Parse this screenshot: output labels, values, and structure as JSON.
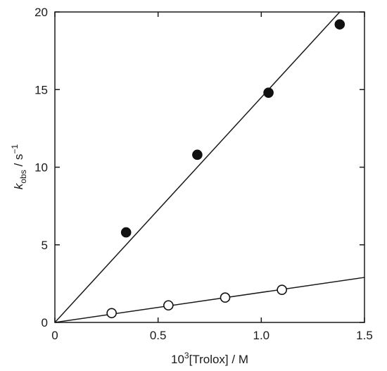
{
  "chart_data": {
    "type": "scatter",
    "xlabel": {
      "prefix": "10",
      "sup": "3",
      "suffix": "[Trolox] / M"
    },
    "ylabel": {
      "symbol": "k",
      "sub": "obs",
      "units": " / s",
      "sup": "−1"
    },
    "xlim": [
      0,
      1.5
    ],
    "ylim": [
      0,
      20
    ],
    "x_ticks": [
      0,
      0.5,
      1.0,
      1.5
    ],
    "x_tick_labels": [
      "0",
      "0.5",
      "1.0",
      "1.5"
    ],
    "y_ticks": [
      0,
      5,
      10,
      15,
      20
    ],
    "y_tick_labels": [
      "0",
      "5",
      "10",
      "15",
      "20"
    ],
    "grid": false,
    "series": [
      {
        "marker": "filled-circle",
        "points": [
          {
            "x": 0.345,
            "y": 5.8
          },
          {
            "x": 0.69,
            "y": 10.8
          },
          {
            "x": 1.035,
            "y": 14.8
          },
          {
            "x": 1.38,
            "y": 19.2
          }
        ],
        "fit_line": {
          "x": [
            0,
            1.38
          ],
          "y": [
            0,
            20.0
          ]
        }
      },
      {
        "marker": "open-circle",
        "points": [
          {
            "x": 0.275,
            "y": 0.6
          },
          {
            "x": 0.55,
            "y": 1.1
          },
          {
            "x": 0.825,
            "y": 1.6
          },
          {
            "x": 1.1,
            "y": 2.1
          }
        ],
        "fit_line": {
          "x": [
            0,
            1.5
          ],
          "y": [
            0,
            2.9
          ]
        }
      }
    ]
  }
}
